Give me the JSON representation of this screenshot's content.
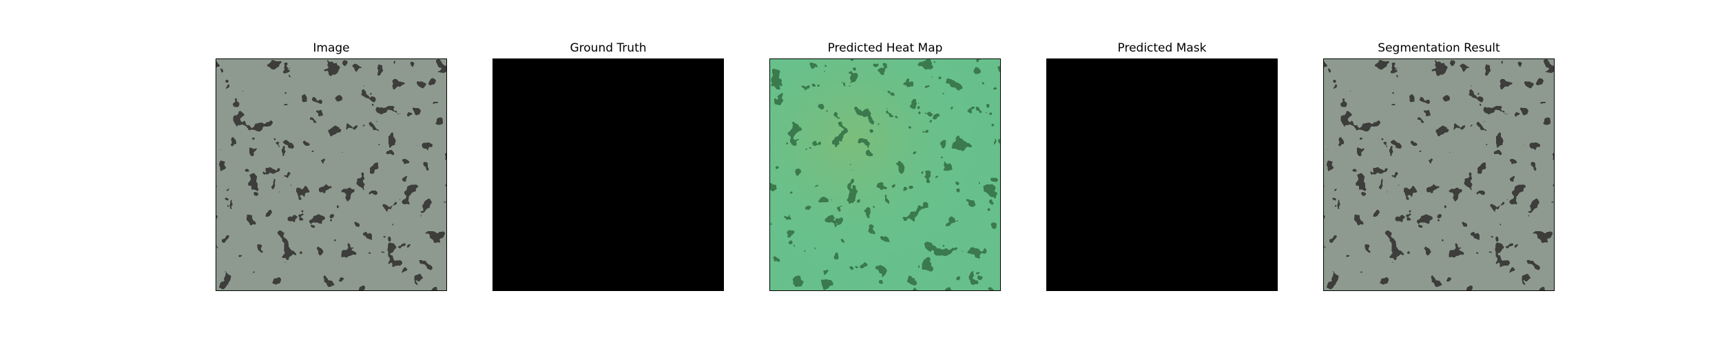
{
  "figure": {
    "panels": [
      {
        "title": "Image",
        "kind": "texture"
      },
      {
        "title": "Ground Truth",
        "kind": "mask"
      },
      {
        "title": "Predicted Heat Map",
        "kind": "heatmap"
      },
      {
        "title": "Predicted Mask",
        "kind": "mask"
      },
      {
        "title": "Segmentation Result",
        "kind": "texture"
      }
    ],
    "colors": {
      "texture_base": "#8e9a8f",
      "texture_spots": "#3c3d3b",
      "heatmap_base": "#67c08c",
      "heatmap_spots": "#3a7a4e",
      "mask": "#000000"
    }
  }
}
